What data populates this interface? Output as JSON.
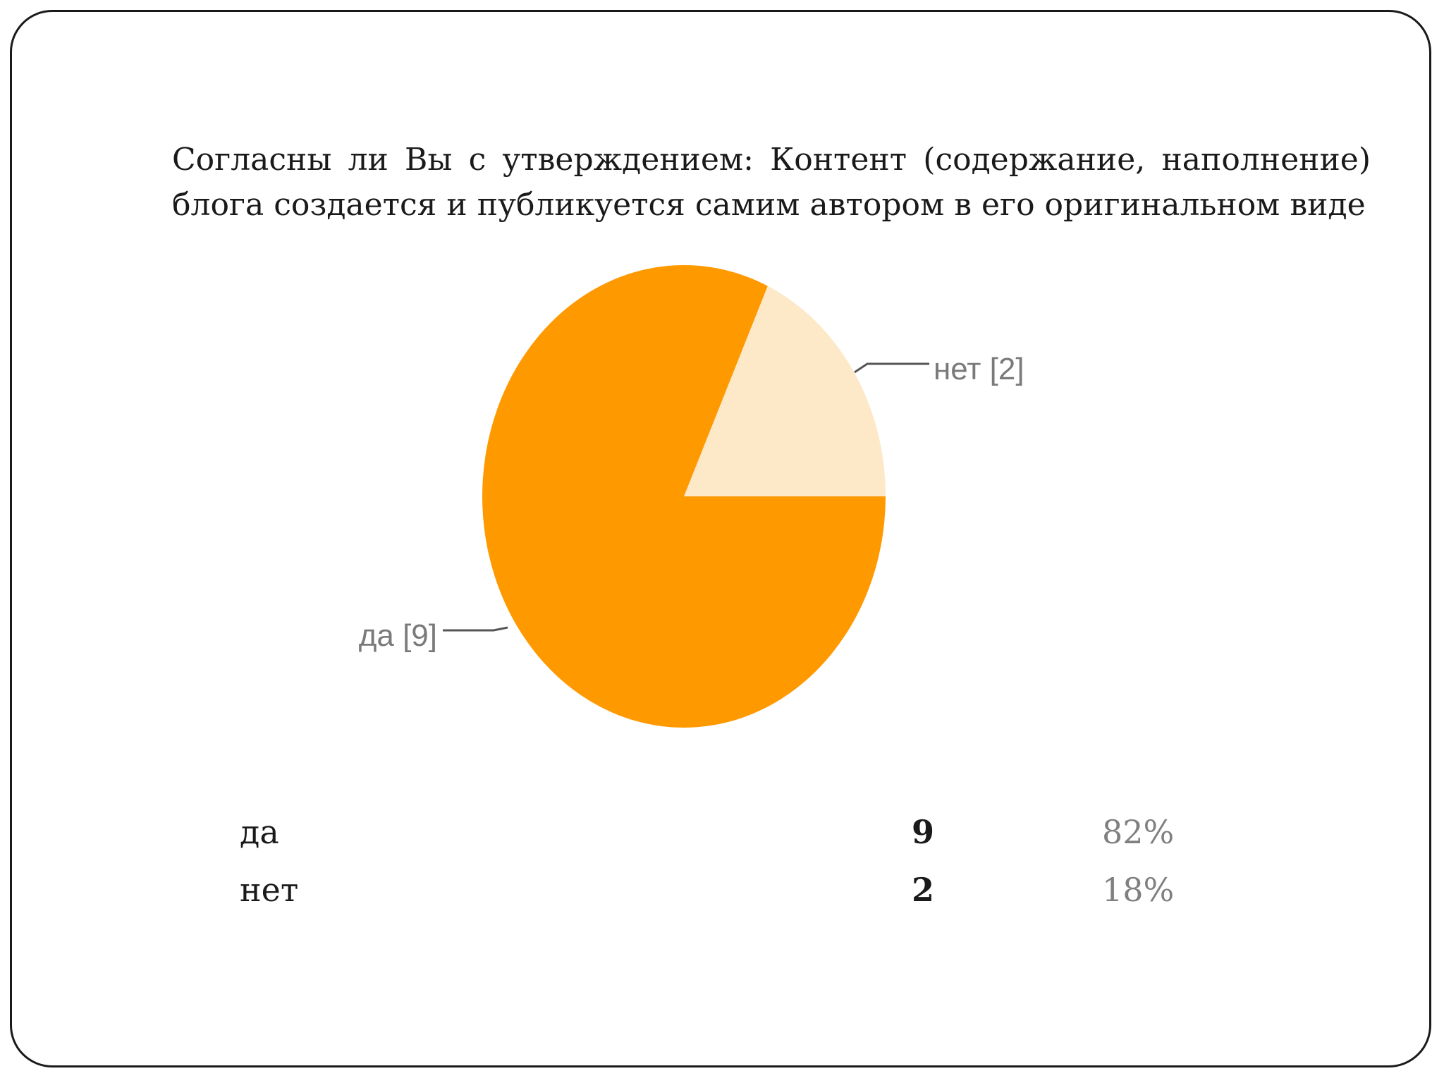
{
  "question": {
    "line1": "Согласны ли Вы с утверждением: Контент (содержание, наполнение)",
    "line2": "блога создается и публикуется самим автором в его оригинальном виде"
  },
  "chart_data": {
    "type": "pie",
    "slices": [
      {
        "label": "да",
        "value": 9,
        "color": "#ff9900",
        "display": "да [9]"
      },
      {
        "label": "нет",
        "value": 2,
        "color": "#fde8c8",
        "display": "нет [2]"
      }
    ],
    "leader_line_color": "#555555"
  },
  "table": {
    "rows": [
      {
        "label": "да",
        "count": "9",
        "percent": "82%"
      },
      {
        "label": "нет",
        "count": "2",
        "percent": "18%"
      }
    ]
  }
}
